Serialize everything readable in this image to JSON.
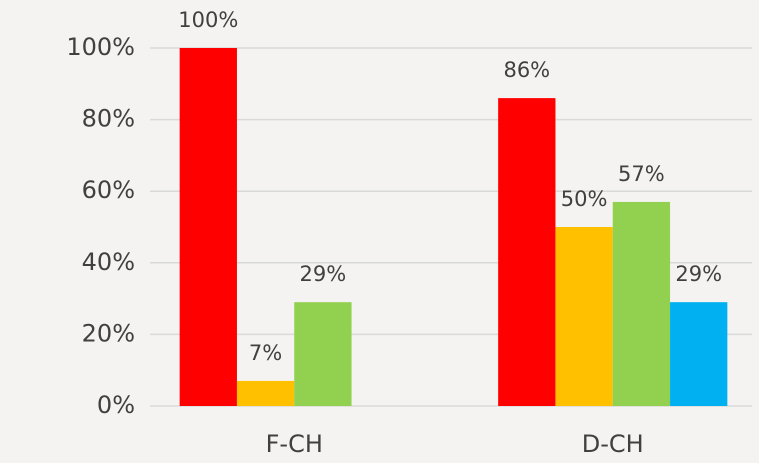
{
  "chart_data": {
    "type": "bar",
    "categories": [
      "F-CH",
      "D-CH"
    ],
    "series": [
      {
        "color": "#ff0000",
        "values": [
          100,
          86
        ],
        "value_labels": [
          "100%",
          "86%"
        ]
      },
      {
        "color": "#ffc000",
        "values": [
          7,
          50
        ],
        "value_labels": [
          "7%",
          "50%"
        ]
      },
      {
        "color": "#92d050",
        "values": [
          29,
          57
        ],
        "value_labels": [
          "29%",
          "57%"
        ]
      },
      {
        "color": "#00b0f0",
        "values": [
          null,
          29
        ],
        "value_labels": [
          null,
          "29%"
        ]
      }
    ],
    "ylim": [
      0,
      100
    ],
    "yticks": [
      {
        "value": 0,
        "label": "0%"
      },
      {
        "value": 20,
        "label": "20%"
      },
      {
        "value": 40,
        "label": "40%"
      },
      {
        "value": 60,
        "label": "60%"
      },
      {
        "value": 80,
        "label": "80%"
      },
      {
        "value": 100,
        "label": "100%"
      }
    ],
    "grid": true
  }
}
